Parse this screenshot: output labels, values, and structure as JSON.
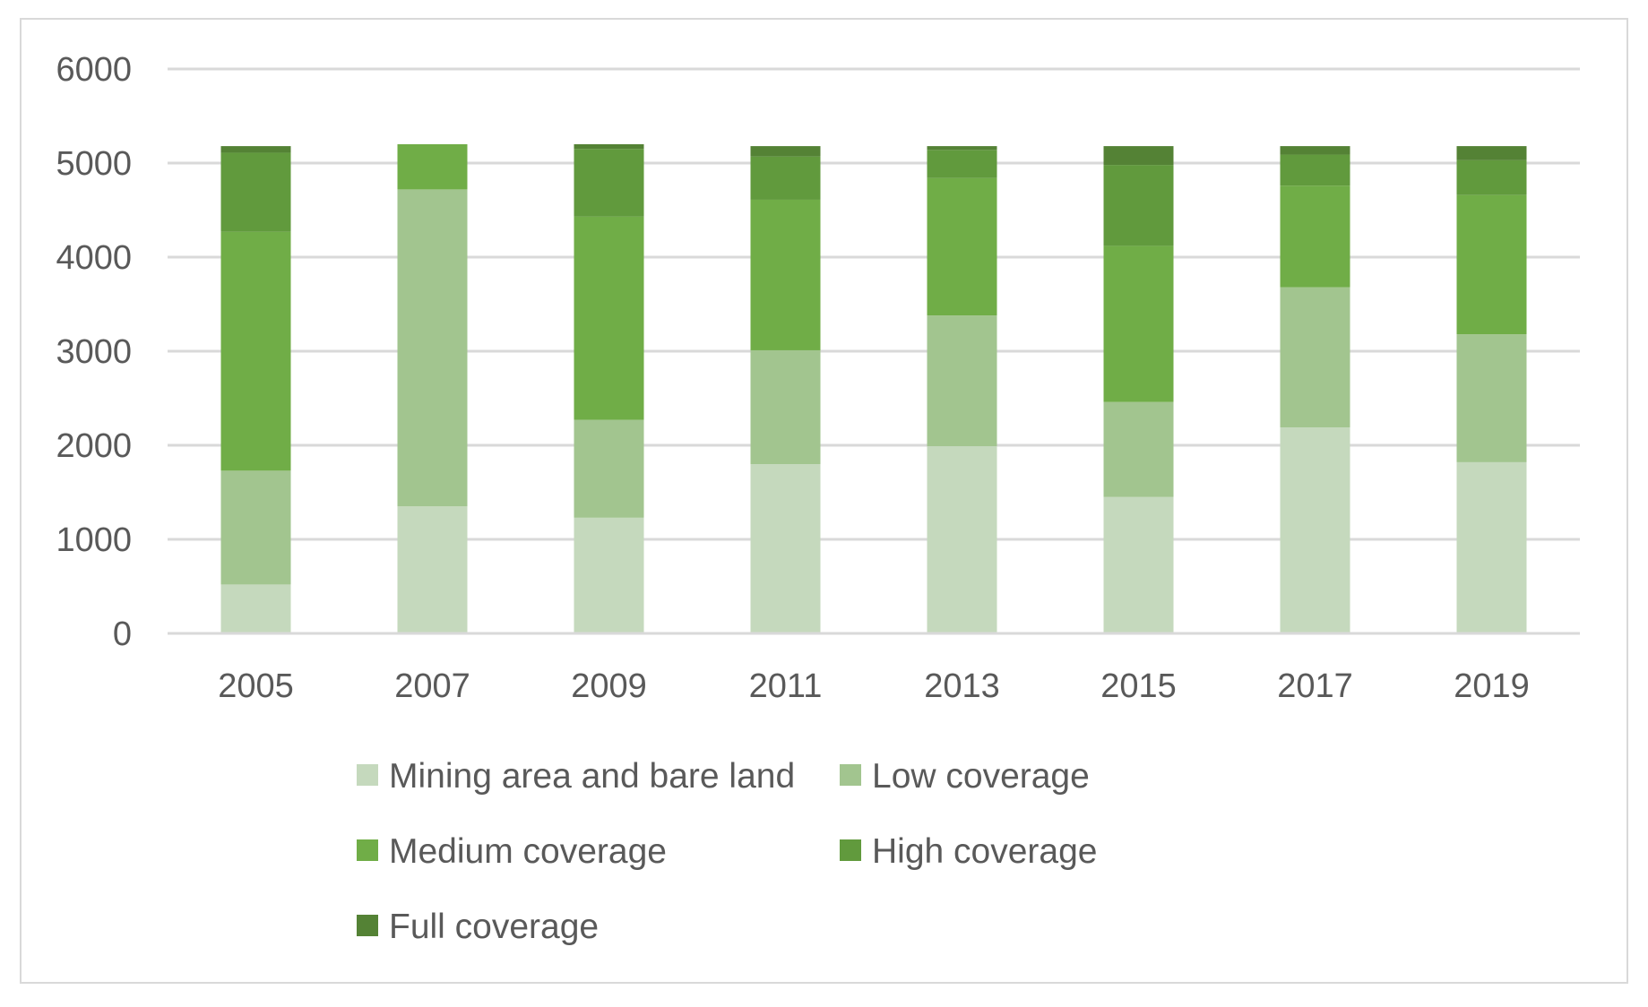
{
  "chart_data": {
    "type": "bar",
    "stacked": true,
    "title": "",
    "xlabel": "",
    "ylabel": "",
    "ylim": [
      0,
      6000
    ],
    "yticks": [
      0,
      1000,
      2000,
      3000,
      4000,
      5000,
      6000
    ],
    "ytick_labels": [
      "0",
      "1000",
      "2000",
      "3000",
      "4000",
      "5000",
      "6000"
    ],
    "grid": true,
    "legend_position": "bottom",
    "categories": [
      "2005",
      "2007",
      "2009",
      "2011",
      "2013",
      "2015",
      "2017",
      "2019"
    ],
    "series": [
      {
        "name": "Mining area and bare land",
        "color": "#c5d9bd",
        "values": [
          520,
          1350,
          1230,
          1800,
          1990,
          1450,
          2190,
          1820
        ]
      },
      {
        "name": "Low coverage",
        "color": "#a2c58f",
        "values": [
          1210,
          3370,
          1040,
          1210,
          1390,
          1010,
          1490,
          1360
        ]
      },
      {
        "name": "Medium coverage",
        "color": "#70ad47",
        "values": [
          2540,
          480,
          2160,
          1600,
          1460,
          1660,
          1080,
          1480
        ]
      },
      {
        "name": "High coverage",
        "color": "#619a3d",
        "values": [
          840,
          0,
          720,
          460,
          300,
          860,
          330,
          370
        ]
      },
      {
        "name": "Full coverage",
        "color": "#548235",
        "values": [
          70,
          0,
          50,
          110,
          40,
          200,
          90,
          150
        ]
      }
    ]
  }
}
